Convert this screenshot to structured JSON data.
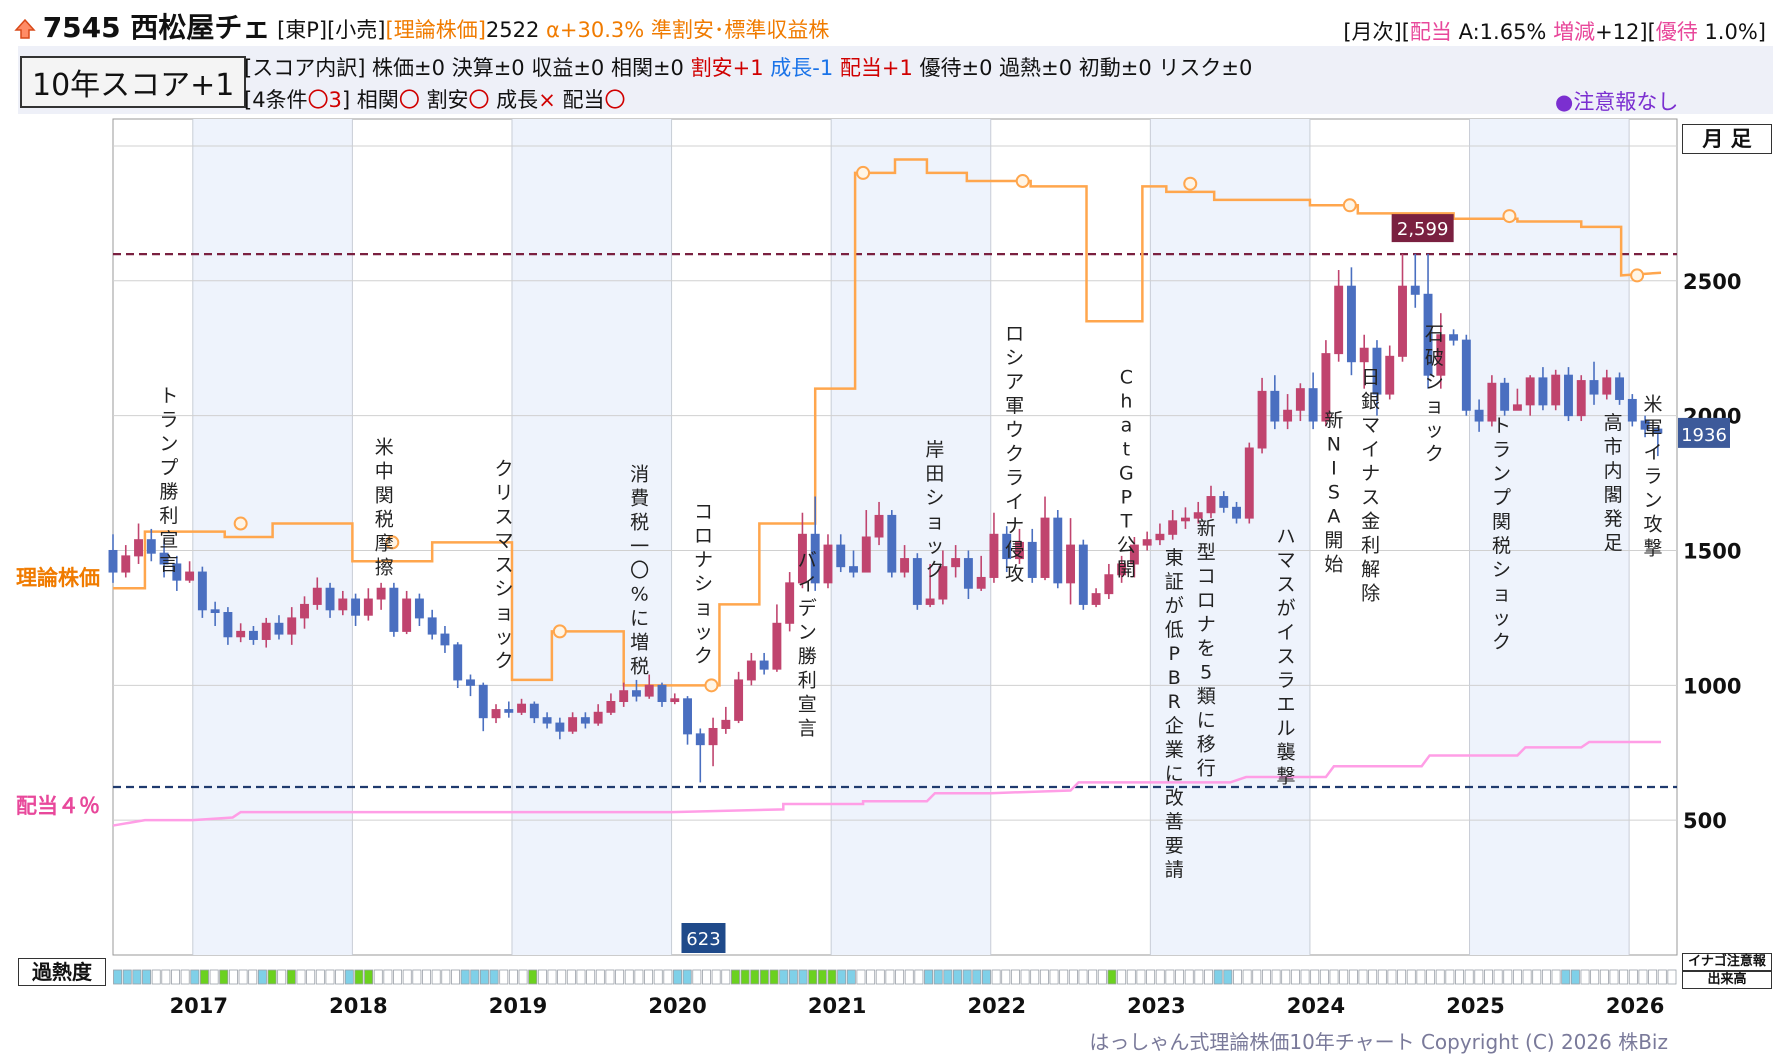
{
  "header": {
    "icon": "up-arrow-icon",
    "code_name": "7545 西松屋チェ",
    "tags": "[東P][小売]",
    "theory_label": "[理論株価]",
    "theory_value": "2522",
    "alpha": "α+30.3%",
    "rating": "準割安･標準収益株",
    "right_prefix": "[月次][",
    "right_div": "配当",
    "right_a": " A:1.65% ",
    "right_change_label": "増減",
    "right_change_val": "+12][",
    "right_yutai": "優待",
    "right_yutai_val": " 1.0%]"
  },
  "score": {
    "box": "10年スコア+1",
    "breakdown_prefix": "[スコア内訳] 株価±0 決算±0 収益±0 相関±0 ",
    "wariyasu": "割安+1",
    "seicho": "成長-1",
    "haito": "配当+1",
    "breakdown_suffix": " 優待±0 過熱±0 初動±0 リスク±0",
    "conditions_prefix": "[4条件",
    "conditions_count": "〇3",
    "conditions_mid": "] 相関",
    "c1": "〇",
    "c2_label": " 割安",
    "c2": "〇",
    "c3_label": " 成長",
    "c3": "×",
    "c4_label": " 配当",
    "c4": "〇",
    "notice": "●注意報なし"
  },
  "legend": {
    "theory_price": "理論株価",
    "dividend_4pct": "配当４％",
    "monthly": "月 足",
    "overheat": "過熱度",
    "inago": "イナゴ注意報",
    "volume": "出来高"
  },
  "footer": {
    "copyright": "はっしゃん式理論株価10年チャート Copyright (C) 2026 株Biz"
  },
  "colors": {
    "theory_line": "#ffa64d",
    "dividend_line": "#ff9ee6",
    "candle_up": "#c0446e",
    "candle_down": "#4a6fc0",
    "high_line": "#7a2040",
    "low_line": "#1f3a6e",
    "shade": "#eef3fc"
  },
  "chart_data": {
    "type": "candlestick",
    "x_years": [
      "2017",
      "2018",
      "2019",
      "2020",
      "2021",
      "2022",
      "2023",
      "2024",
      "2025",
      "2026"
    ],
    "y_ticks": [
      500,
      1000,
      1500,
      2000,
      2500
    ],
    "ylim": [
      0,
      3100
    ],
    "high_marker": 2599,
    "high_label": "2,599",
    "low_marker": 623,
    "low_label": "623",
    "last_price": 1936,
    "last_label": "1936",
    "theory_price": [
      [
        2016.5,
        1360
      ],
      [
        2016.7,
        1360
      ],
      [
        2016.7,
        1570
      ],
      [
        2017.2,
        1570
      ],
      [
        2017.2,
        1550
      ],
      [
        2017.5,
        1550
      ],
      [
        2017.5,
        1600
      ],
      [
        2018.0,
        1600
      ],
      [
        2018.0,
        1460
      ],
      [
        2018.5,
        1460
      ],
      [
        2018.5,
        1530
      ],
      [
        2019.0,
        1530
      ],
      [
        2019.0,
        1020
      ],
      [
        2019.25,
        1020
      ],
      [
        2019.25,
        1200
      ],
      [
        2019.7,
        1200
      ],
      [
        2019.7,
        1000
      ],
      [
        2020.3,
        1000
      ],
      [
        2020.3,
        1300
      ],
      [
        2020.55,
        1300
      ],
      [
        2020.55,
        1600
      ],
      [
        2020.9,
        1600
      ],
      [
        2020.9,
        2100
      ],
      [
        2021.15,
        2100
      ],
      [
        2021.15,
        2900
      ],
      [
        2021.4,
        2900
      ],
      [
        2021.4,
        2950
      ],
      [
        2021.6,
        2950
      ],
      [
        2021.6,
        2900
      ],
      [
        2021.85,
        2900
      ],
      [
        2021.85,
        2870
      ],
      [
        2022.25,
        2870
      ],
      [
        2022.25,
        2850
      ],
      [
        2022.6,
        2850
      ],
      [
        2022.6,
        2350
      ],
      [
        2022.95,
        2350
      ],
      [
        2022.95,
        2850
      ],
      [
        2023.1,
        2850
      ],
      [
        2023.1,
        2830
      ],
      [
        2023.4,
        2830
      ],
      [
        2023.4,
        2800
      ],
      [
        2024.0,
        2800
      ],
      [
        2024.0,
        2780
      ],
      [
        2024.3,
        2780
      ],
      [
        2024.3,
        2750
      ],
      [
        2024.9,
        2750
      ],
      [
        2024.9,
        2730
      ],
      [
        2025.3,
        2730
      ],
      [
        2025.3,
        2720
      ],
      [
        2025.7,
        2720
      ],
      [
        2025.7,
        2700
      ],
      [
        2025.95,
        2700
      ],
      [
        2025.95,
        2520
      ],
      [
        2026.2,
        2530
      ]
    ],
    "theory_markers": [
      [
        2017.3,
        1600
      ],
      [
        2018.25,
        1530
      ],
      [
        2019.3,
        1200
      ],
      [
        2020.25,
        1000
      ],
      [
        2021.2,
        2900
      ],
      [
        2022.2,
        2870
      ],
      [
        2023.25,
        2860
      ],
      [
        2024.25,
        2780
      ],
      [
        2025.25,
        2740
      ],
      [
        2026.05,
        2520
      ]
    ],
    "dividend_4pct": [
      [
        2016.5,
        480
      ],
      [
        2016.6,
        490
      ],
      [
        2016.7,
        500
      ],
      [
        2017.0,
        500
      ],
      [
        2017.25,
        510
      ],
      [
        2017.3,
        530
      ],
      [
        2018.0,
        530
      ],
      [
        2019.0,
        530
      ],
      [
        2020.0,
        530
      ],
      [
        2020.7,
        540
      ],
      [
        2020.7,
        560
      ],
      [
        2021.2,
        560
      ],
      [
        2021.2,
        570
      ],
      [
        2021.6,
        570
      ],
      [
        2021.65,
        600
      ],
      [
        2022.0,
        600
      ],
      [
        2022.5,
        610
      ],
      [
        2022.55,
        640
      ],
      [
        2023.5,
        640
      ],
      [
        2023.6,
        660
      ],
      [
        2024.1,
        660
      ],
      [
        2024.15,
        700
      ],
      [
        2024.7,
        700
      ],
      [
        2024.75,
        740
      ],
      [
        2025.3,
        740
      ],
      [
        2025.35,
        770
      ],
      [
        2025.7,
        770
      ],
      [
        2025.75,
        790
      ],
      [
        2026.2,
        790
      ]
    ],
    "candles": [
      [
        2016.5,
        1500,
        1420,
        1560,
        1380
      ],
      [
        2016.58,
        1420,
        1480,
        1520,
        1400
      ],
      [
        2016.66,
        1480,
        1540,
        1600,
        1450
      ],
      [
        2016.74,
        1540,
        1490,
        1580,
        1460
      ],
      [
        2016.82,
        1490,
        1450,
        1540,
        1400
      ],
      [
        2016.9,
        1450,
        1390,
        1480,
        1350
      ],
      [
        2016.98,
        1390,
        1420,
        1460,
        1380
      ],
      [
        2017.06,
        1420,
        1280,
        1440,
        1250
      ],
      [
        2017.14,
        1280,
        1270,
        1310,
        1220
      ],
      [
        2017.22,
        1270,
        1180,
        1290,
        1150
      ],
      [
        2017.3,
        1180,
        1200,
        1230,
        1160
      ],
      [
        2017.38,
        1200,
        1170,
        1220,
        1150
      ],
      [
        2017.46,
        1170,
        1230,
        1250,
        1140
      ],
      [
        2017.54,
        1230,
        1190,
        1260,
        1170
      ],
      [
        2017.62,
        1190,
        1250,
        1290,
        1150
      ],
      [
        2017.7,
        1250,
        1300,
        1330,
        1210
      ],
      [
        2017.78,
        1300,
        1360,
        1400,
        1280
      ],
      [
        2017.86,
        1360,
        1280,
        1380,
        1250
      ],
      [
        2017.94,
        1280,
        1320,
        1350,
        1260
      ],
      [
        2018.02,
        1320,
        1260,
        1340,
        1220
      ],
      [
        2018.1,
        1260,
        1320,
        1360,
        1240
      ],
      [
        2018.18,
        1320,
        1360,
        1380,
        1280
      ],
      [
        2018.26,
        1360,
        1200,
        1380,
        1180
      ],
      [
        2018.34,
        1200,
        1320,
        1350,
        1190
      ],
      [
        2018.42,
        1320,
        1250,
        1340,
        1220
      ],
      [
        2018.5,
        1250,
        1190,
        1280,
        1170
      ],
      [
        2018.58,
        1190,
        1150,
        1220,
        1120
      ],
      [
        2018.66,
        1150,
        1020,
        1160,
        990
      ],
      [
        2018.74,
        1020,
        1000,
        1040,
        960
      ],
      [
        2018.82,
        1000,
        880,
        1010,
        830
      ],
      [
        2018.9,
        880,
        910,
        930,
        860
      ],
      [
        2018.98,
        910,
        900,
        940,
        880
      ],
      [
        2019.06,
        900,
        930,
        950,
        890
      ],
      [
        2019.14,
        930,
        880,
        940,
        860
      ],
      [
        2019.22,
        880,
        860,
        900,
        840
      ],
      [
        2019.3,
        860,
        830,
        880,
        800
      ],
      [
        2019.38,
        830,
        880,
        900,
        820
      ],
      [
        2019.46,
        880,
        860,
        900,
        840
      ],
      [
        2019.54,
        860,
        900,
        930,
        850
      ],
      [
        2019.62,
        900,
        940,
        970,
        890
      ],
      [
        2019.7,
        940,
        980,
        1010,
        920
      ],
      [
        2019.78,
        980,
        960,
        1020,
        940
      ],
      [
        2019.86,
        960,
        1000,
        1040,
        950
      ],
      [
        2019.94,
        1000,
        940,
        1010,
        920
      ],
      [
        2020.02,
        940,
        950,
        970,
        930
      ],
      [
        2020.1,
        950,
        820,
        960,
        780
      ],
      [
        2020.18,
        820,
        780,
        840,
        640
      ],
      [
        2020.26,
        780,
        840,
        880,
        700
      ],
      [
        2020.34,
        840,
        870,
        920,
        820
      ],
      [
        2020.42,
        870,
        1020,
        1050,
        860
      ],
      [
        2020.5,
        1020,
        1090,
        1120,
        1000
      ],
      [
        2020.58,
        1090,
        1060,
        1120,
        1040
      ],
      [
        2020.66,
        1060,
        1230,
        1300,
        1050
      ],
      [
        2020.74,
        1230,
        1380,
        1420,
        1200
      ],
      [
        2020.82,
        1380,
        1560,
        1640,
        1360
      ],
      [
        2020.9,
        1560,
        1380,
        1700,
        1350
      ],
      [
        2020.98,
        1380,
        1520,
        1560,
        1360
      ],
      [
        2021.06,
        1520,
        1440,
        1560,
        1420
      ],
      [
        2021.14,
        1440,
        1420,
        1500,
        1400
      ],
      [
        2021.22,
        1420,
        1550,
        1650,
        1420
      ],
      [
        2021.3,
        1550,
        1630,
        1680,
        1520
      ],
      [
        2021.38,
        1630,
        1420,
        1650,
        1400
      ],
      [
        2021.46,
        1420,
        1470,
        1520,
        1400
      ],
      [
        2021.54,
        1470,
        1300,
        1490,
        1280
      ],
      [
        2021.62,
        1300,
        1320,
        1450,
        1290
      ],
      [
        2021.7,
        1320,
        1440,
        1500,
        1300
      ],
      [
        2021.78,
        1440,
        1470,
        1520,
        1400
      ],
      [
        2021.86,
        1470,
        1360,
        1500,
        1320
      ],
      [
        2021.94,
        1360,
        1400,
        1480,
        1350
      ],
      [
        2022.02,
        1400,
        1560,
        1640,
        1380
      ],
      [
        2022.1,
        1560,
        1470,
        1590,
        1420
      ],
      [
        2022.18,
        1470,
        1530,
        1580,
        1450
      ],
      [
        2022.26,
        1530,
        1400,
        1580,
        1380
      ],
      [
        2022.34,
        1400,
        1620,
        1700,
        1390
      ],
      [
        2022.42,
        1620,
        1380,
        1650,
        1360
      ],
      [
        2022.5,
        1380,
        1520,
        1620,
        1300
      ],
      [
        2022.58,
        1520,
        1300,
        1540,
        1280
      ],
      [
        2022.66,
        1300,
        1340,
        1360,
        1290
      ],
      [
        2022.74,
        1340,
        1410,
        1450,
        1320
      ],
      [
        2022.82,
        1410,
        1450,
        1480,
        1380
      ],
      [
        2022.9,
        1450,
        1520,
        1550,
        1400
      ],
      [
        2022.98,
        1520,
        1540,
        1570,
        1500
      ],
      [
        2023.06,
        1540,
        1560,
        1600,
        1520
      ],
      [
        2023.14,
        1560,
        1610,
        1650,
        1540
      ],
      [
        2023.22,
        1610,
        1620,
        1660,
        1580
      ],
      [
        2023.3,
        1620,
        1640,
        1680,
        1600
      ],
      [
        2023.38,
        1640,
        1700,
        1740,
        1620
      ],
      [
        2023.46,
        1700,
        1660,
        1720,
        1640
      ],
      [
        2023.54,
        1660,
        1620,
        1680,
        1600
      ],
      [
        2023.62,
        1620,
        1880,
        1900,
        1600
      ],
      [
        2023.7,
        1880,
        2090,
        2140,
        1860
      ],
      [
        2023.78,
        2090,
        1980,
        2150,
        1950
      ],
      [
        2023.86,
        1980,
        2020,
        2080,
        1950
      ],
      [
        2023.94,
        2020,
        2100,
        2120,
        1980
      ],
      [
        2024.02,
        2100,
        1980,
        2160,
        1950
      ],
      [
        2024.1,
        1980,
        2230,
        2280,
        1960
      ],
      [
        2024.18,
        2230,
        2480,
        2540,
        2200
      ],
      [
        2024.26,
        2480,
        2200,
        2550,
        2150
      ],
      [
        2024.34,
        2200,
        2250,
        2300,
        2100
      ],
      [
        2024.42,
        2250,
        2080,
        2280,
        2000
      ],
      [
        2024.5,
        2080,
        2220,
        2260,
        2060
      ],
      [
        2024.58,
        2220,
        2480,
        2600,
        2200
      ],
      [
        2024.66,
        2480,
        2450,
        2600,
        2400
      ],
      [
        2024.74,
        2450,
        2150,
        2600,
        2100
      ],
      [
        2024.82,
        2150,
        2300,
        2380,
        2100
      ],
      [
        2024.9,
        2300,
        2280,
        2320,
        2260
      ],
      [
        2024.98,
        2280,
        2020,
        2300,
        2000
      ],
      [
        2025.06,
        2020,
        1980,
        2060,
        1940
      ],
      [
        2025.14,
        1980,
        2120,
        2150,
        1960
      ],
      [
        2025.22,
        2120,
        2020,
        2140,
        2000
      ],
      [
        2025.3,
        2020,
        2040,
        2100,
        2020
      ],
      [
        2025.38,
        2040,
        2140,
        2150,
        2000
      ],
      [
        2025.46,
        2140,
        2040,
        2180,
        2020
      ],
      [
        2025.54,
        2040,
        2150,
        2170,
        2020
      ],
      [
        2025.62,
        2150,
        2000,
        2180,
        1980
      ],
      [
        2025.7,
        2000,
        2130,
        2150,
        1980
      ],
      [
        2025.78,
        2130,
        2080,
        2200,
        2040
      ],
      [
        2025.86,
        2080,
        2140,
        2170,
        2060
      ],
      [
        2025.94,
        2140,
        2060,
        2160,
        2040
      ],
      [
        2026.02,
        2060,
        1980,
        2080,
        1960
      ],
      [
        2026.1,
        1980,
        1950,
        2000,
        1920
      ],
      [
        2026.18,
        1950,
        1936,
        1960,
        1850
      ]
    ],
    "events": [
      {
        "x": 2016.85,
        "y": 2050,
        "text": "トランプ勝利宣言"
      },
      {
        "x": 2018.2,
        "y": 1860,
        "text": "米中関税摩擦"
      },
      {
        "x": 2018.95,
        "y": 1780,
        "text": "クリスマスショック"
      },
      {
        "x": 2019.8,
        "y": 1760,
        "text": "消費税一〇%に増税"
      },
      {
        "x": 2020.2,
        "y": 1620,
        "text": "コロナショック"
      },
      {
        "x": 2020.85,
        "y": 1440,
        "text": "バイデン勝利宣言"
      },
      {
        "x": 2021.65,
        "y": 1850,
        "text": "岸田ショック"
      },
      {
        "x": 2022.15,
        "y": 2280,
        "text": "ロシア軍ウクライナ侵攻"
      },
      {
        "x": 2022.85,
        "y": 2120,
        "text": "ChatGPT公開"
      },
      {
        "x": 2023.15,
        "y": 1450,
        "text": "東証が低PBR企業に改善要請"
      },
      {
        "x": 2023.35,
        "y": 1560,
        "text": "新型コロナを5類に移行"
      },
      {
        "x": 2023.85,
        "y": 1530,
        "text": "ハマスがイスラエル襲撃"
      },
      {
        "x": 2024.15,
        "y": 1960,
        "text": "新NISA開始"
      },
      {
        "x": 2024.38,
        "y": 2120,
        "text": "日銀マイナス金利解除"
      },
      {
        "x": 2024.78,
        "y": 2280,
        "text": "石破ショック"
      },
      {
        "x": 2025.2,
        "y": 1940,
        "text": "トランプ関税ショック"
      },
      {
        "x": 2025.9,
        "y": 1950,
        "text": "高市内閣発足"
      },
      {
        "x": 2026.15,
        "y": 2020,
        "text": "米軍イラン攻撃"
      }
    ],
    "overheat_cells": "ccccllllcglglllcglglllllcgglllllllllcccclllgllllllllllllllccllllgggggcccgggcclllllllcccccccllllllllllllgllllllllllccllllllllllllllllllllllllllllllllllccllllllllll"
  }
}
